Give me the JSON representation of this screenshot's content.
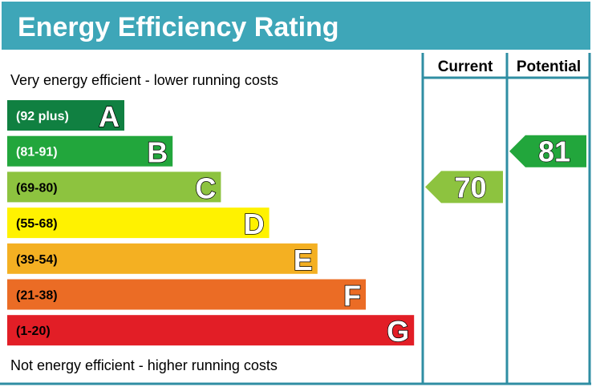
{
  "chart_data": {
    "type": "bar",
    "title": "Energy Efficiency Rating",
    "top_note": "Very energy efficient - lower running costs",
    "bottom_note": "Not energy efficient - higher running costs",
    "columns": [
      "Current",
      "Potential"
    ],
    "bands": [
      {
        "letter": "A",
        "range": "(92 plus)",
        "color": "#108041"
      },
      {
        "letter": "B",
        "range": "(81-91)",
        "color": "#22a63c"
      },
      {
        "letter": "C",
        "range": "(69-80)",
        "color": "#8dc33f"
      },
      {
        "letter": "D",
        "range": "(55-68)",
        "color": "#fff200"
      },
      {
        "letter": "E",
        "range": "(39-54)",
        "color": "#f4b022"
      },
      {
        "letter": "F",
        "range": "(21-38)",
        "color": "#eb6c25"
      },
      {
        "letter": "G",
        "range": "(1-20)",
        "color": "#e21e26"
      }
    ],
    "current": {
      "value": 70,
      "band": "C",
      "color": "#8dc33f"
    },
    "potential": {
      "value": 81,
      "band": "B",
      "color": "#22a63c"
    },
    "header_color": "#3ea6b8"
  }
}
